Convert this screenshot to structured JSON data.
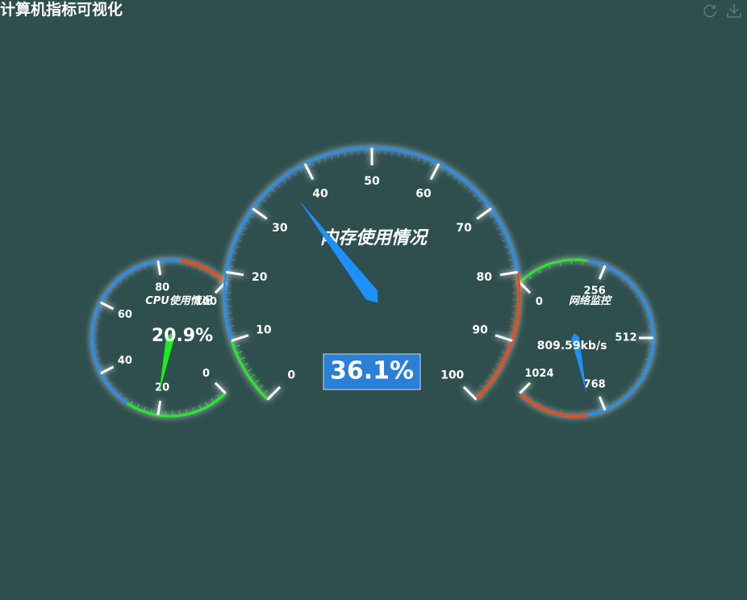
{
  "header": {
    "title": "计算机指标可视化"
  },
  "toolbox": [
    {
      "name": "restore-icon"
    },
    {
      "name": "download-icon"
    }
  ],
  "colors": {
    "background": "#2f4f4f",
    "low": "#1aef1a",
    "mid": "#1e90ff",
    "high": "#ff4500",
    "label_box": "#2a7fd6"
  },
  "chart_data": [
    {
      "type": "gauge",
      "id": "memory",
      "title": "内存使用情况",
      "min": 0,
      "max": 100,
      "tick_labels": [
        "0",
        "10",
        "20",
        "30",
        "40",
        "50",
        "60",
        "70",
        "80",
        "90",
        "100"
      ],
      "value": 36.1,
      "value_label": "36.1%",
      "bands": [
        {
          "to": 0.1,
          "color": "low"
        },
        {
          "to": 0.8,
          "color": "mid"
        },
        {
          "to": 1.0,
          "color": "high"
        }
      ]
    },
    {
      "type": "gauge",
      "id": "cpu",
      "title": "CPU使用情况",
      "min": 0,
      "max": 100,
      "tick_labels": [
        "0",
        "20",
        "40",
        "60",
        "80",
        "100"
      ],
      "value": 20.9,
      "value_label": "20.9%",
      "bands": [
        {
          "to": 0.29,
          "color": "low"
        },
        {
          "to": 0.86,
          "color": "mid"
        },
        {
          "to": 1.0,
          "color": "high"
        }
      ]
    },
    {
      "type": "gauge",
      "id": "network",
      "title": "网络监控",
      "min": 0,
      "max": 1024,
      "tick_labels": [
        "0",
        "256",
        "512",
        "768",
        "1024"
      ],
      "value": 809.59,
      "value_label": "809.59kb/s",
      "bands": [
        {
          "to": 0.2,
          "color": "low"
        },
        {
          "to": 0.8,
          "color": "mid"
        },
        {
          "to": 1.0,
          "color": "high"
        }
      ]
    }
  ]
}
